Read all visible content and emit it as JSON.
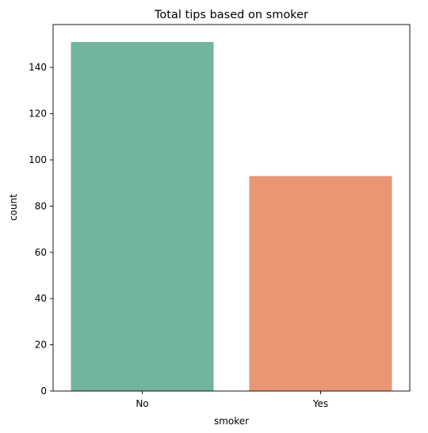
{
  "chart_data": {
    "type": "bar",
    "title": "Total tips based on smoker",
    "xlabel": "smoker",
    "ylabel": "count",
    "categories": [
      "No",
      "Yes"
    ],
    "values": [
      151,
      93
    ],
    "ylim": [
      0,
      158.55
    ],
    "yticks": [
      0,
      20,
      40,
      60,
      80,
      100,
      120,
      140
    ],
    "colors": [
      "#73b4a0",
      "#e99675"
    ],
    "grid": false,
    "legend": "none"
  }
}
